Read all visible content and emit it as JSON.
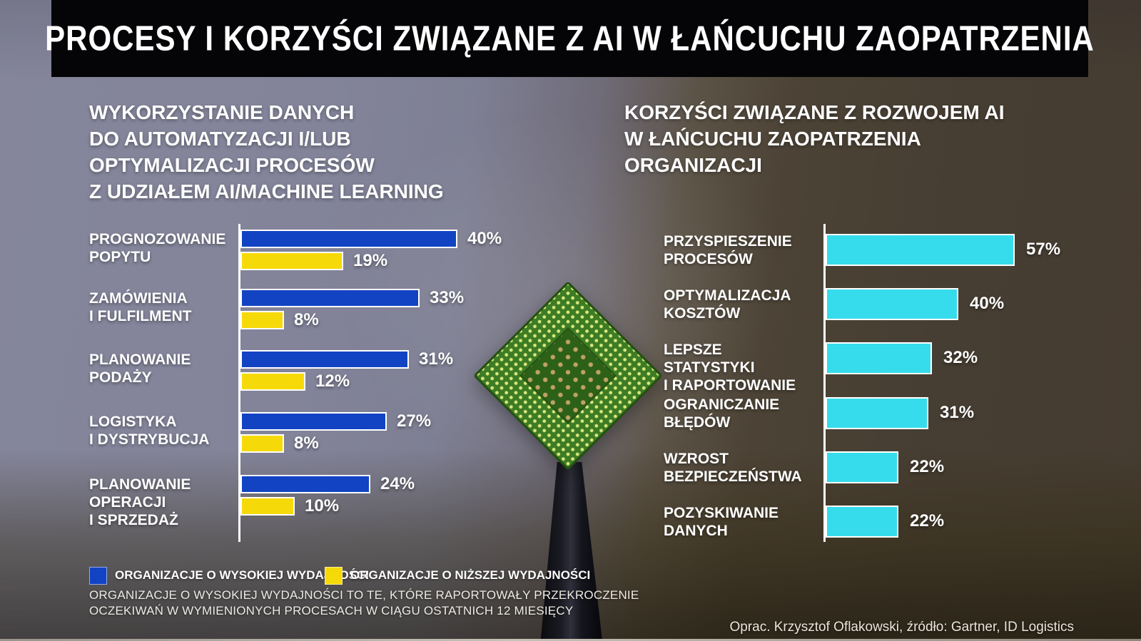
{
  "header": {
    "title": "PROCESY I KORZYŚCI ZWIĄZANE Z AI W ŁAŃCUCHU ZAOPATRZENIA"
  },
  "left_chart": {
    "title_display": "WYKORZYSTANIE DANYCH\nDO AUTOMATYZACJI I/LUB\nOPTYMALIZACJI PROCESÓW\nZ UDZIAŁEM AI/MACHINE LEARNING"
  },
  "right_chart": {
    "title_display": "KORZYŚCI ZWIĄZANE Z ROZWOJEM AI\nW ŁAŃCUCHU ZAOPATRZENIA\nORGANIZACJI"
  },
  "chart_data": [
    {
      "id": "ai-ml-process-usage",
      "type": "bar",
      "orientation": "horizontal",
      "title": "WYKORZYSTANIE DANYCH DO AUTOMATYZACJI I/LUB OPTYMALIZACJI PROCESÓW Z UDZIAŁEM AI/MACHINE LEARNING",
      "categories": [
        "PROGNOZOWANIE POPYTU",
        "ZAMÓWIENIA I FULFILMENT",
        "PLANOWANIE PODAŻY",
        "LOGISTYKA I DYSTRYBUCJA",
        "PLANOWANIE OPERACJI I SPRZEDAŻ"
      ],
      "category_lines": [
        [
          "PROGNOZOWANIE",
          "POPYTU"
        ],
        [
          "ZAMÓWIENIA",
          "I FULFILMENT"
        ],
        [
          "PLANOWANIE",
          "PODAŻY"
        ],
        [
          "LOGISTYKA",
          "I DYSTRYBUCJA"
        ],
        [
          "PLANOWANIE",
          "OPERACJI",
          "I SPRZEDAŻ"
        ]
      ],
      "series": [
        {
          "name": "ORGANIZACJE O WYSOKIEJ WYDAJNOŚCI",
          "color": "#1243c2",
          "values": [
            40,
            33,
            31,
            27,
            24
          ]
        },
        {
          "name": "ORGANIZACJE O NIŻSZEJ WYDAJNOŚCI",
          "color": "#f6d908",
          "values": [
            19,
            8,
            12,
            8,
            10
          ]
        }
      ],
      "value_suffix": "%",
      "xlim": [
        0,
        45
      ],
      "grid": false,
      "value_labels": true,
      "legend_position": "bottom-left"
    },
    {
      "id": "ai-benefits",
      "type": "bar",
      "orientation": "horizontal",
      "title": "KORZYŚCI ZWIĄZANE Z ROZWOJEM AI W ŁAŃCUCHU ZAOPATRZENIA ORGANIZACJI",
      "categories": [
        "PRZYSPIESZENIE PROCESÓW",
        "OPTYMALIZACJA KOSZTÓW",
        "LEPSZE STATYSTYKI I RAPORTOWANIE",
        "OGRANICZANIE BŁĘDÓW",
        "WZROST BEZPIECZEŃSTWA",
        "POZYSKIWANIE DANYCH"
      ],
      "category_lines": [
        [
          "PRZYSPIESZENIE",
          "PROCESÓW"
        ],
        [
          "OPTYMALIZACJA",
          "KOSZTÓW"
        ],
        [
          "LEPSZE STATYSTYKI",
          "I RAPORTOWANIE"
        ],
        [
          "OGRANICZANIE",
          "BŁĘDÓW"
        ],
        [
          "WZROST",
          "BEZPIECZEŃSTWA"
        ],
        [
          "POZYSKIWANIE",
          "DANYCH"
        ]
      ],
      "values": [
        57,
        40,
        32,
        31,
        22,
        22
      ],
      "color": "#36dcec",
      "value_suffix": "%",
      "xlim": [
        0,
        60
      ],
      "grid": false,
      "value_labels": true
    }
  ],
  "legend": {
    "items": [
      {
        "label": "ORGANIZACJE O WYSOKIEJ WYDAJNOŚCI",
        "color": "#1243c2"
      },
      {
        "label": "ORGANIZACJE O NIŻSZEJ WYDAJNOŚCI",
        "color": "#f6d908"
      }
    ]
  },
  "footnote_display": "ORGANIZACJE O WYSOKIEJ WYDAJNOŚCI TO TE, KTÓRE RAPORTOWAŁY PRZEKROCZENIE\nOCZEKIWAŃ W WYMIENIONYCH PROCESACH W CIĄGU OSTATNICH 12 MIESIĘCY",
  "credit": "Oprac. Krzysztof Oflakowski, źródło: Gartner, ID Logistics",
  "colors": {
    "high_performers_bar": "#1243c2",
    "low_performers_bar": "#f6d908",
    "benefits_bar": "#36dcec",
    "header_bg": "#050507",
    "bg_left": "#84859a",
    "bg_right": "#453c31",
    "bar_border": "#ffffff"
  },
  "photo": {
    "subject": "cpu-chip-on-pen-tip"
  }
}
